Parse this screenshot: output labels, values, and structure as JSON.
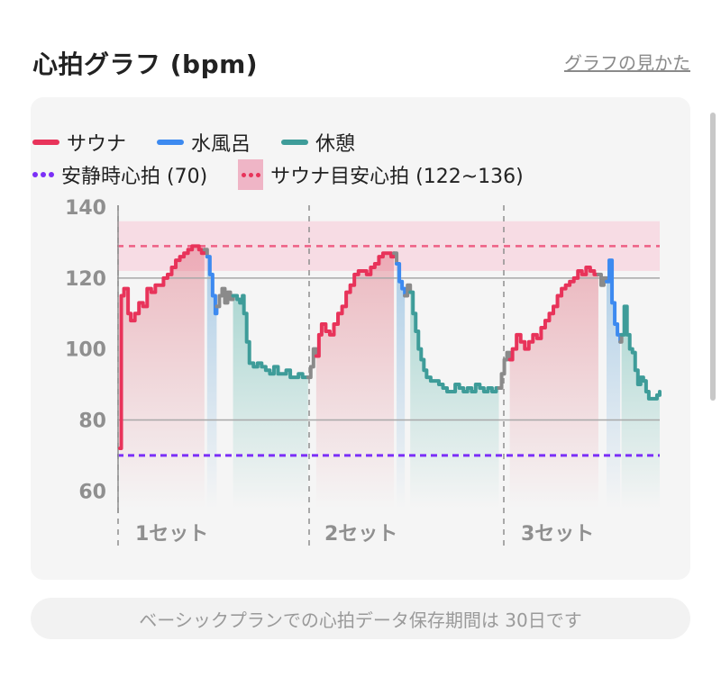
{
  "header": {
    "title": "心拍グラフ (bpm)",
    "help_link": "グラフの見かた"
  },
  "colors": {
    "sauna": "#e8335a",
    "cold_bath": "#3d8af0",
    "rest": "#3e9c99",
    "transition": "#8a8a8a",
    "resting_line": "#7b2ff7",
    "target_band": "#f7dce4",
    "target_line": "#ee5f84"
  },
  "legend": {
    "sauna": "サウナ",
    "cold_bath": "水風呂",
    "rest": "休憩",
    "resting": "安静時心拍 (70)",
    "target": "サウナ目安心拍 (122~136)"
  },
  "footer_note": "ベーシックプランでの心拍データ保存期間は 30日です",
  "chart_data": {
    "type": "line",
    "ylim": [
      55,
      140
    ],
    "y_ticks": [
      140,
      120,
      100,
      80,
      60
    ],
    "x_range": [
      0,
      30
    ],
    "set_labels": [
      "1セット",
      "2セット",
      "3セット"
    ],
    "set_starts": [
      0,
      10.7,
      21.7
    ],
    "resting_hr": 70,
    "target_band": [
      122,
      136
    ],
    "target_line": 129,
    "reference_lines": [
      120,
      80
    ],
    "segments": [
      {
        "phase": "sauna",
        "points": [
          [
            0.2,
            72
          ],
          [
            0.3,
            115
          ],
          [
            0.5,
            117
          ],
          [
            0.8,
            110
          ],
          [
            1.0,
            108
          ],
          [
            1.3,
            110
          ],
          [
            1.6,
            113
          ],
          [
            1.9,
            112
          ],
          [
            2.2,
            117
          ],
          [
            2.5,
            116
          ],
          [
            2.8,
            118
          ],
          [
            3.1,
            118
          ],
          [
            3.4,
            120
          ],
          [
            3.7,
            121
          ],
          [
            4.0,
            123
          ],
          [
            4.3,
            125
          ],
          [
            4.6,
            126
          ],
          [
            4.9,
            127
          ],
          [
            5.2,
            128
          ],
          [
            5.5,
            129
          ],
          [
            5.8,
            129
          ],
          [
            6.0,
            128
          ],
          [
            6.2,
            127
          ],
          [
            6.4,
            128
          ]
        ]
      },
      {
        "phase": "transition",
        "points": [
          [
            6.4,
            128
          ],
          [
            6.6,
            126
          ]
        ]
      },
      {
        "phase": "cold_bath",
        "points": [
          [
            6.6,
            126
          ],
          [
            6.8,
            121
          ],
          [
            7.0,
            115
          ],
          [
            7.2,
            110
          ],
          [
            7.3,
            112
          ]
        ]
      },
      {
        "phase": "transition",
        "points": [
          [
            7.3,
            112
          ],
          [
            7.5,
            115
          ],
          [
            7.7,
            117
          ],
          [
            7.9,
            113
          ],
          [
            8.1,
            116
          ],
          [
            8.3,
            114
          ],
          [
            8.5,
            115
          ]
        ]
      },
      {
        "phase": "rest",
        "points": [
          [
            8.5,
            115
          ],
          [
            8.8,
            114
          ],
          [
            9.0,
            113
          ],
          [
            9.2,
            115
          ],
          [
            9.3,
            110
          ],
          [
            9.5,
            102
          ],
          [
            9.7,
            96
          ],
          [
            10.0,
            95
          ],
          [
            10.3,
            96
          ],
          [
            10.6,
            95
          ],
          [
            10.9,
            94
          ],
          [
            11.2,
            93
          ],
          [
            11.5,
            95
          ],
          [
            11.8,
            93
          ],
          [
            12.1,
            93
          ],
          [
            12.4,
            94
          ],
          [
            12.7,
            92
          ],
          [
            13.0,
            92
          ],
          [
            13.3,
            93
          ],
          [
            13.6,
            92
          ],
          [
            14.0,
            92
          ]
        ]
      },
      {
        "phase": "transition",
        "points": [
          [
            14.0,
            92
          ],
          [
            14.2,
            95
          ],
          [
            14.4,
            100
          ],
          [
            14.6,
            98
          ]
        ]
      },
      {
        "phase": "sauna",
        "points": [
          [
            14.6,
            98
          ],
          [
            14.8,
            104
          ],
          [
            15.0,
            107
          ],
          [
            15.3,
            105
          ],
          [
            15.6,
            104
          ],
          [
            15.9,
            107
          ],
          [
            16.2,
            110
          ],
          [
            16.5,
            112
          ],
          [
            16.8,
            116
          ],
          [
            17.1,
            118
          ],
          [
            17.4,
            121
          ],
          [
            17.7,
            122
          ],
          [
            18.0,
            122
          ],
          [
            18.3,
            121
          ],
          [
            18.6,
            123
          ],
          [
            18.9,
            124
          ],
          [
            19.2,
            126
          ],
          [
            19.5,
            127
          ],
          [
            19.8,
            127
          ],
          [
            20.1,
            126
          ],
          [
            20.3,
            127
          ]
        ]
      },
      {
        "phase": "transition",
        "points": [
          [
            20.3,
            127
          ],
          [
            20.5,
            124
          ]
        ]
      },
      {
        "phase": "cold_bath",
        "points": [
          [
            20.5,
            124
          ],
          [
            20.7,
            119
          ],
          [
            20.9,
            117
          ],
          [
            21.1,
            115
          ]
        ]
      },
      {
        "phase": "transition",
        "points": [
          [
            21.1,
            115
          ],
          [
            21.3,
            118
          ],
          [
            21.5,
            116
          ]
        ]
      },
      {
        "phase": "rest",
        "points": [
          [
            21.5,
            116
          ],
          [
            21.7,
            110
          ],
          [
            21.9,
            105
          ],
          [
            22.1,
            100
          ],
          [
            22.3,
            97
          ],
          [
            22.5,
            94
          ],
          [
            22.7,
            92
          ],
          [
            23.0,
            91
          ],
          [
            23.3,
            91
          ],
          [
            23.6,
            90
          ],
          [
            23.9,
            89
          ],
          [
            24.2,
            88
          ],
          [
            24.5,
            88
          ],
          [
            24.8,
            90
          ],
          [
            25.1,
            89
          ],
          [
            25.4,
            88
          ],
          [
            25.7,
            89
          ],
          [
            26.0,
            88
          ],
          [
            26.3,
            90
          ],
          [
            26.6,
            89
          ],
          [
            26.9,
            88
          ],
          [
            27.2,
            89
          ],
          [
            27.5,
            88
          ],
          [
            27.8,
            89
          ],
          [
            28.0,
            89
          ]
        ]
      },
      {
        "phase": "transition",
        "points": [
          [
            28.0,
            89
          ],
          [
            28.2,
            93
          ],
          [
            28.4,
            97
          ],
          [
            28.6,
            99
          ],
          [
            28.8,
            97
          ]
        ]
      },
      {
        "phase": "sauna",
        "points": [
          [
            28.8,
            97
          ],
          [
            29.0,
            100
          ],
          [
            29.3,
            104
          ],
          [
            29.6,
            102
          ],
          [
            29.9,
            100
          ],
          [
            30.2,
            102
          ],
          [
            30.5,
            104
          ],
          [
            30.8,
            103
          ],
          [
            31.1,
            106
          ],
          [
            31.4,
            108
          ],
          [
            31.7,
            110
          ],
          [
            32.0,
            112
          ],
          [
            32.3,
            115
          ],
          [
            32.6,
            117
          ],
          [
            32.9,
            118
          ],
          [
            33.2,
            119
          ],
          [
            33.5,
            120
          ],
          [
            33.8,
            122
          ],
          [
            34.1,
            121
          ],
          [
            34.4,
            123
          ],
          [
            34.7,
            122
          ],
          [
            35.0,
            121
          ],
          [
            35.3,
            121
          ]
        ]
      },
      {
        "phase": "transition",
        "points": [
          [
            35.3,
            121
          ],
          [
            35.5,
            118
          ],
          [
            35.7,
            120
          ],
          [
            35.9,
            119
          ]
        ]
      },
      {
        "phase": "cold_bath",
        "points": [
          [
            35.9,
            119
          ],
          [
            36.1,
            125
          ],
          [
            36.3,
            113
          ],
          [
            36.5,
            107
          ],
          [
            36.7,
            104
          ],
          [
            36.9,
            102
          ]
        ]
      },
      {
        "phase": "transition",
        "points": [
          [
            36.9,
            102
          ],
          [
            37.0,
            104
          ]
        ]
      },
      {
        "phase": "rest",
        "points": [
          [
            37.0,
            104
          ],
          [
            37.2,
            112
          ],
          [
            37.4,
            104
          ],
          [
            37.6,
            100
          ],
          [
            37.8,
            99
          ],
          [
            38.0,
            94
          ],
          [
            38.2,
            90
          ],
          [
            38.4,
            92
          ],
          [
            38.6,
            91
          ],
          [
            38.8,
            88
          ],
          [
            39.0,
            86
          ],
          [
            39.3,
            86
          ],
          [
            39.6,
            87
          ],
          [
            39.8,
            88
          ]
        ]
      }
    ]
  }
}
